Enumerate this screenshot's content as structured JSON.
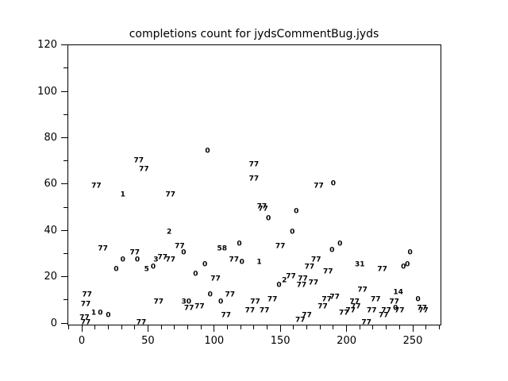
{
  "page": {
    "title": "completions count for jydsCommentBug.jyds"
  },
  "chart_data": {
    "type": "scatter",
    "title": "completions count for jydsCommentBug.jyds",
    "xlabel": "",
    "ylabel": "",
    "xlim": [
      -11,
      272
    ],
    "ylim": [
      -1,
      120.5
    ],
    "grid": false,
    "legend": false,
    "marker": "numeric-text-label",
    "x_major_ticks": [
      0,
      50,
      100,
      150,
      200,
      250
    ],
    "x_minor_step": 10,
    "x_minor_range": [
      -10,
      270
    ],
    "y_major_ticks": [
      0,
      20,
      40,
      60,
      80,
      100,
      120
    ],
    "y_minor_step": 10,
    "y_minor_range": [
      0,
      120
    ],
    "points": [
      {
        "x": 43,
        "y": 70,
        "label": "77"
      },
      {
        "x": 47,
        "y": 66,
        "label": "77"
      },
      {
        "x": 11,
        "y": 59,
        "label": "77"
      },
      {
        "x": 31,
        "y": 55,
        "label": "1"
      },
      {
        "x": 67,
        "y": 55,
        "label": "77"
      },
      {
        "x": 66,
        "y": 39,
        "label": "2"
      },
      {
        "x": 95,
        "y": 74,
        "label": "0"
      },
      {
        "x": 130,
        "y": 68,
        "label": "77"
      },
      {
        "x": 130,
        "y": 62,
        "label": "77"
      },
      {
        "x": 179,
        "y": 59,
        "label": "77"
      },
      {
        "x": 136,
        "y": 50,
        "label": "77"
      },
      {
        "x": 137,
        "y": 49,
        "label": "77"
      },
      {
        "x": 141,
        "y": 45,
        "label": "0"
      },
      {
        "x": 162,
        "y": 48,
        "label": "0"
      },
      {
        "x": 159,
        "y": 39,
        "label": "0"
      },
      {
        "x": 190,
        "y": 60,
        "label": "0"
      },
      {
        "x": 16,
        "y": 32,
        "label": "77"
      },
      {
        "x": 31,
        "y": 27,
        "label": "0"
      },
      {
        "x": 26,
        "y": 23,
        "label": "0"
      },
      {
        "x": 40,
        "y": 30,
        "label": "77"
      },
      {
        "x": 42,
        "y": 27,
        "label": "0"
      },
      {
        "x": 56,
        "y": 27,
        "label": "3"
      },
      {
        "x": 49,
        "y": 23,
        "label": "5"
      },
      {
        "x": 54,
        "y": 24,
        "label": "0"
      },
      {
        "x": 4,
        "y": 12,
        "label": "77"
      },
      {
        "x": 3,
        "y": 8,
        "label": "77"
      },
      {
        "x": 9,
        "y": 4,
        "label": "1"
      },
      {
        "x": 14,
        "y": 4,
        "label": "0"
      },
      {
        "x": 20,
        "y": 3,
        "label": "0"
      },
      {
        "x": 2,
        "y": 2,
        "label": "77"
      },
      {
        "x": 3,
        "y": 0,
        "label": "77"
      },
      {
        "x": 58,
        "y": 9,
        "label": "77"
      },
      {
        "x": 45,
        "y": 0,
        "label": "77"
      },
      {
        "x": 74,
        "y": 33,
        "label": "77"
      },
      {
        "x": 77,
        "y": 30,
        "label": "0"
      },
      {
        "x": 61,
        "y": 28,
        "label": "77"
      },
      {
        "x": 67,
        "y": 27,
        "label": "77"
      },
      {
        "x": 93,
        "y": 25,
        "label": "0"
      },
      {
        "x": 86,
        "y": 21,
        "label": "0"
      },
      {
        "x": 101,
        "y": 19,
        "label": "77"
      },
      {
        "x": 106,
        "y": 32,
        "label": "58"
      },
      {
        "x": 119,
        "y": 34,
        "label": "0"
      },
      {
        "x": 115,
        "y": 27,
        "label": "77"
      },
      {
        "x": 121,
        "y": 26,
        "label": "0"
      },
      {
        "x": 97,
        "y": 12,
        "label": "0"
      },
      {
        "x": 112,
        "y": 12,
        "label": "77"
      },
      {
        "x": 79,
        "y": 9,
        "label": "30"
      },
      {
        "x": 81,
        "y": 6,
        "label": "77"
      },
      {
        "x": 89,
        "y": 7,
        "label": "77"
      },
      {
        "x": 105,
        "y": 9,
        "label": "0"
      },
      {
        "x": 109,
        "y": 3,
        "label": "77"
      },
      {
        "x": 127,
        "y": 5,
        "label": "77"
      },
      {
        "x": 150,
        "y": 33,
        "label": "77"
      },
      {
        "x": 189,
        "y": 31,
        "label": "0"
      },
      {
        "x": 195,
        "y": 34,
        "label": "0"
      },
      {
        "x": 134,
        "y": 26,
        "label": "1"
      },
      {
        "x": 177,
        "y": 27,
        "label": "77"
      },
      {
        "x": 172,
        "y": 24,
        "label": "77"
      },
      {
        "x": 186,
        "y": 22,
        "label": "77"
      },
      {
        "x": 153,
        "y": 18,
        "label": "2"
      },
      {
        "x": 158,
        "y": 20,
        "label": "77"
      },
      {
        "x": 149,
        "y": 16,
        "label": "0"
      },
      {
        "x": 167,
        "y": 19,
        "label": "77"
      },
      {
        "x": 166,
        "y": 16,
        "label": "77"
      },
      {
        "x": 175,
        "y": 17,
        "label": "77"
      },
      {
        "x": 185,
        "y": 10,
        "label": "77"
      },
      {
        "x": 191,
        "y": 11,
        "label": "77"
      },
      {
        "x": 182,
        "y": 7,
        "label": "77"
      },
      {
        "x": 138,
        "y": 5,
        "label": "77"
      },
      {
        "x": 144,
        "y": 10,
        "label": "77"
      },
      {
        "x": 170,
        "y": 3,
        "label": "77"
      },
      {
        "x": 165,
        "y": 1,
        "label": "77"
      },
      {
        "x": 198,
        "y": 4,
        "label": "77"
      },
      {
        "x": 203,
        "y": 5,
        "label": "77"
      },
      {
        "x": 131,
        "y": 9,
        "label": "77"
      },
      {
        "x": 248,
        "y": 30,
        "label": "0"
      },
      {
        "x": 210,
        "y": 25,
        "label": "31"
      },
      {
        "x": 227,
        "y": 23,
        "label": "77"
      },
      {
        "x": 243,
        "y": 24,
        "label": "0"
      },
      {
        "x": 246,
        "y": 25,
        "label": "0"
      },
      {
        "x": 212,
        "y": 14,
        "label": "77"
      },
      {
        "x": 206,
        "y": 9,
        "label": "77"
      },
      {
        "x": 207,
        "y": 7,
        "label": "77"
      },
      {
        "x": 222,
        "y": 10,
        "label": "77"
      },
      {
        "x": 236,
        "y": 9,
        "label": "77"
      },
      {
        "x": 239,
        "y": 13,
        "label": "14"
      },
      {
        "x": 237,
        "y": 6,
        "label": "0"
      },
      {
        "x": 240,
        "y": 5,
        "label": "77"
      },
      {
        "x": 230,
        "y": 5,
        "label": "77"
      },
      {
        "x": 228,
        "y": 3,
        "label": "77"
      },
      {
        "x": 219,
        "y": 5,
        "label": "77"
      },
      {
        "x": 254,
        "y": 10,
        "label": "0"
      },
      {
        "x": 257,
        "y": 6,
        "label": "77"
      },
      {
        "x": 258,
        "y": 5,
        "label": "77"
      },
      {
        "x": 215,
        "y": 0,
        "label": "77"
      }
    ]
  }
}
